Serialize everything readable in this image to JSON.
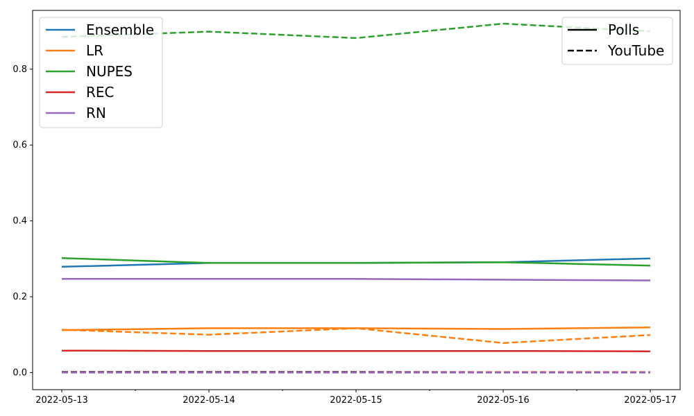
{
  "chart_data": {
    "type": "line",
    "title": "",
    "xlabel": "",
    "ylabel": "",
    "x": [
      "2022-05-13",
      "2022-05-14",
      "2022-05-15",
      "2022-05-16",
      "2022-05-17"
    ],
    "ylim": [
      -0.045,
      0.955
    ],
    "yticks": [
      0.0,
      0.2,
      0.4,
      0.6,
      0.8
    ],
    "ytick_labels": [
      "0.0",
      "0.2",
      "0.4",
      "0.6",
      "0.8"
    ],
    "grid": false,
    "series": [
      {
        "name": "Ensemble",
        "color": "#1f77b4",
        "source": "Polls",
        "values": [
          0.279,
          0.289,
          0.289,
          0.291,
          0.301
        ]
      },
      {
        "name": "Ensemble",
        "color": "#1f77b4",
        "source": "YouTube",
        "values": [
          0.002,
          0.002,
          0.002,
          0.001,
          0.001
        ]
      },
      {
        "name": "LR",
        "color": "#ff7f0e",
        "source": "Polls",
        "values": [
          0.112,
          0.117,
          0.117,
          0.115,
          0.119
        ]
      },
      {
        "name": "LR",
        "color": "#ff7f0e",
        "source": "YouTube",
        "values": [
          0.113,
          0.1,
          0.117,
          0.078,
          0.099
        ]
      },
      {
        "name": "NUPES",
        "color": "#2ca02c",
        "source": "Polls",
        "values": [
          0.302,
          0.289,
          0.289,
          0.291,
          0.282
        ]
      },
      {
        "name": "NUPES",
        "color": "#2ca02c",
        "source": "YouTube",
        "values": [
          0.885,
          0.899,
          0.882,
          0.92,
          0.9
        ]
      },
      {
        "name": "REC",
        "color": "#d62728",
        "source": "Polls",
        "values": [
          0.058,
          0.057,
          0.057,
          0.057,
          0.056
        ]
      },
      {
        "name": "REC",
        "color": "#d62728",
        "source": "YouTube",
        "values": [
          0.001,
          0.001,
          0.001,
          0.001,
          0.001
        ]
      },
      {
        "name": "RN",
        "color": "#9467bd",
        "source": "Polls",
        "values": [
          0.247,
          0.247,
          0.247,
          0.245,
          0.243
        ]
      },
      {
        "name": "RN",
        "color": "#9467bd",
        "source": "YouTube",
        "values": [
          0.0,
          0.0,
          0.0,
          0.0,
          0.0
        ]
      }
    ],
    "legend_parties": {
      "placement": "upper-left",
      "entries": [
        {
          "label": "Ensemble",
          "color": "#1f77b4"
        },
        {
          "label": "LR",
          "color": "#ff7f0e"
        },
        {
          "label": "NUPES",
          "color": "#2ca02c"
        },
        {
          "label": "REC",
          "color": "#d62728"
        },
        {
          "label": "RN",
          "color": "#9467bd"
        }
      ]
    },
    "legend_sources": {
      "placement": "upper-right",
      "entries": [
        {
          "label": "Polls",
          "style": "solid"
        },
        {
          "label": "YouTube",
          "style": "dashed"
        }
      ]
    }
  }
}
